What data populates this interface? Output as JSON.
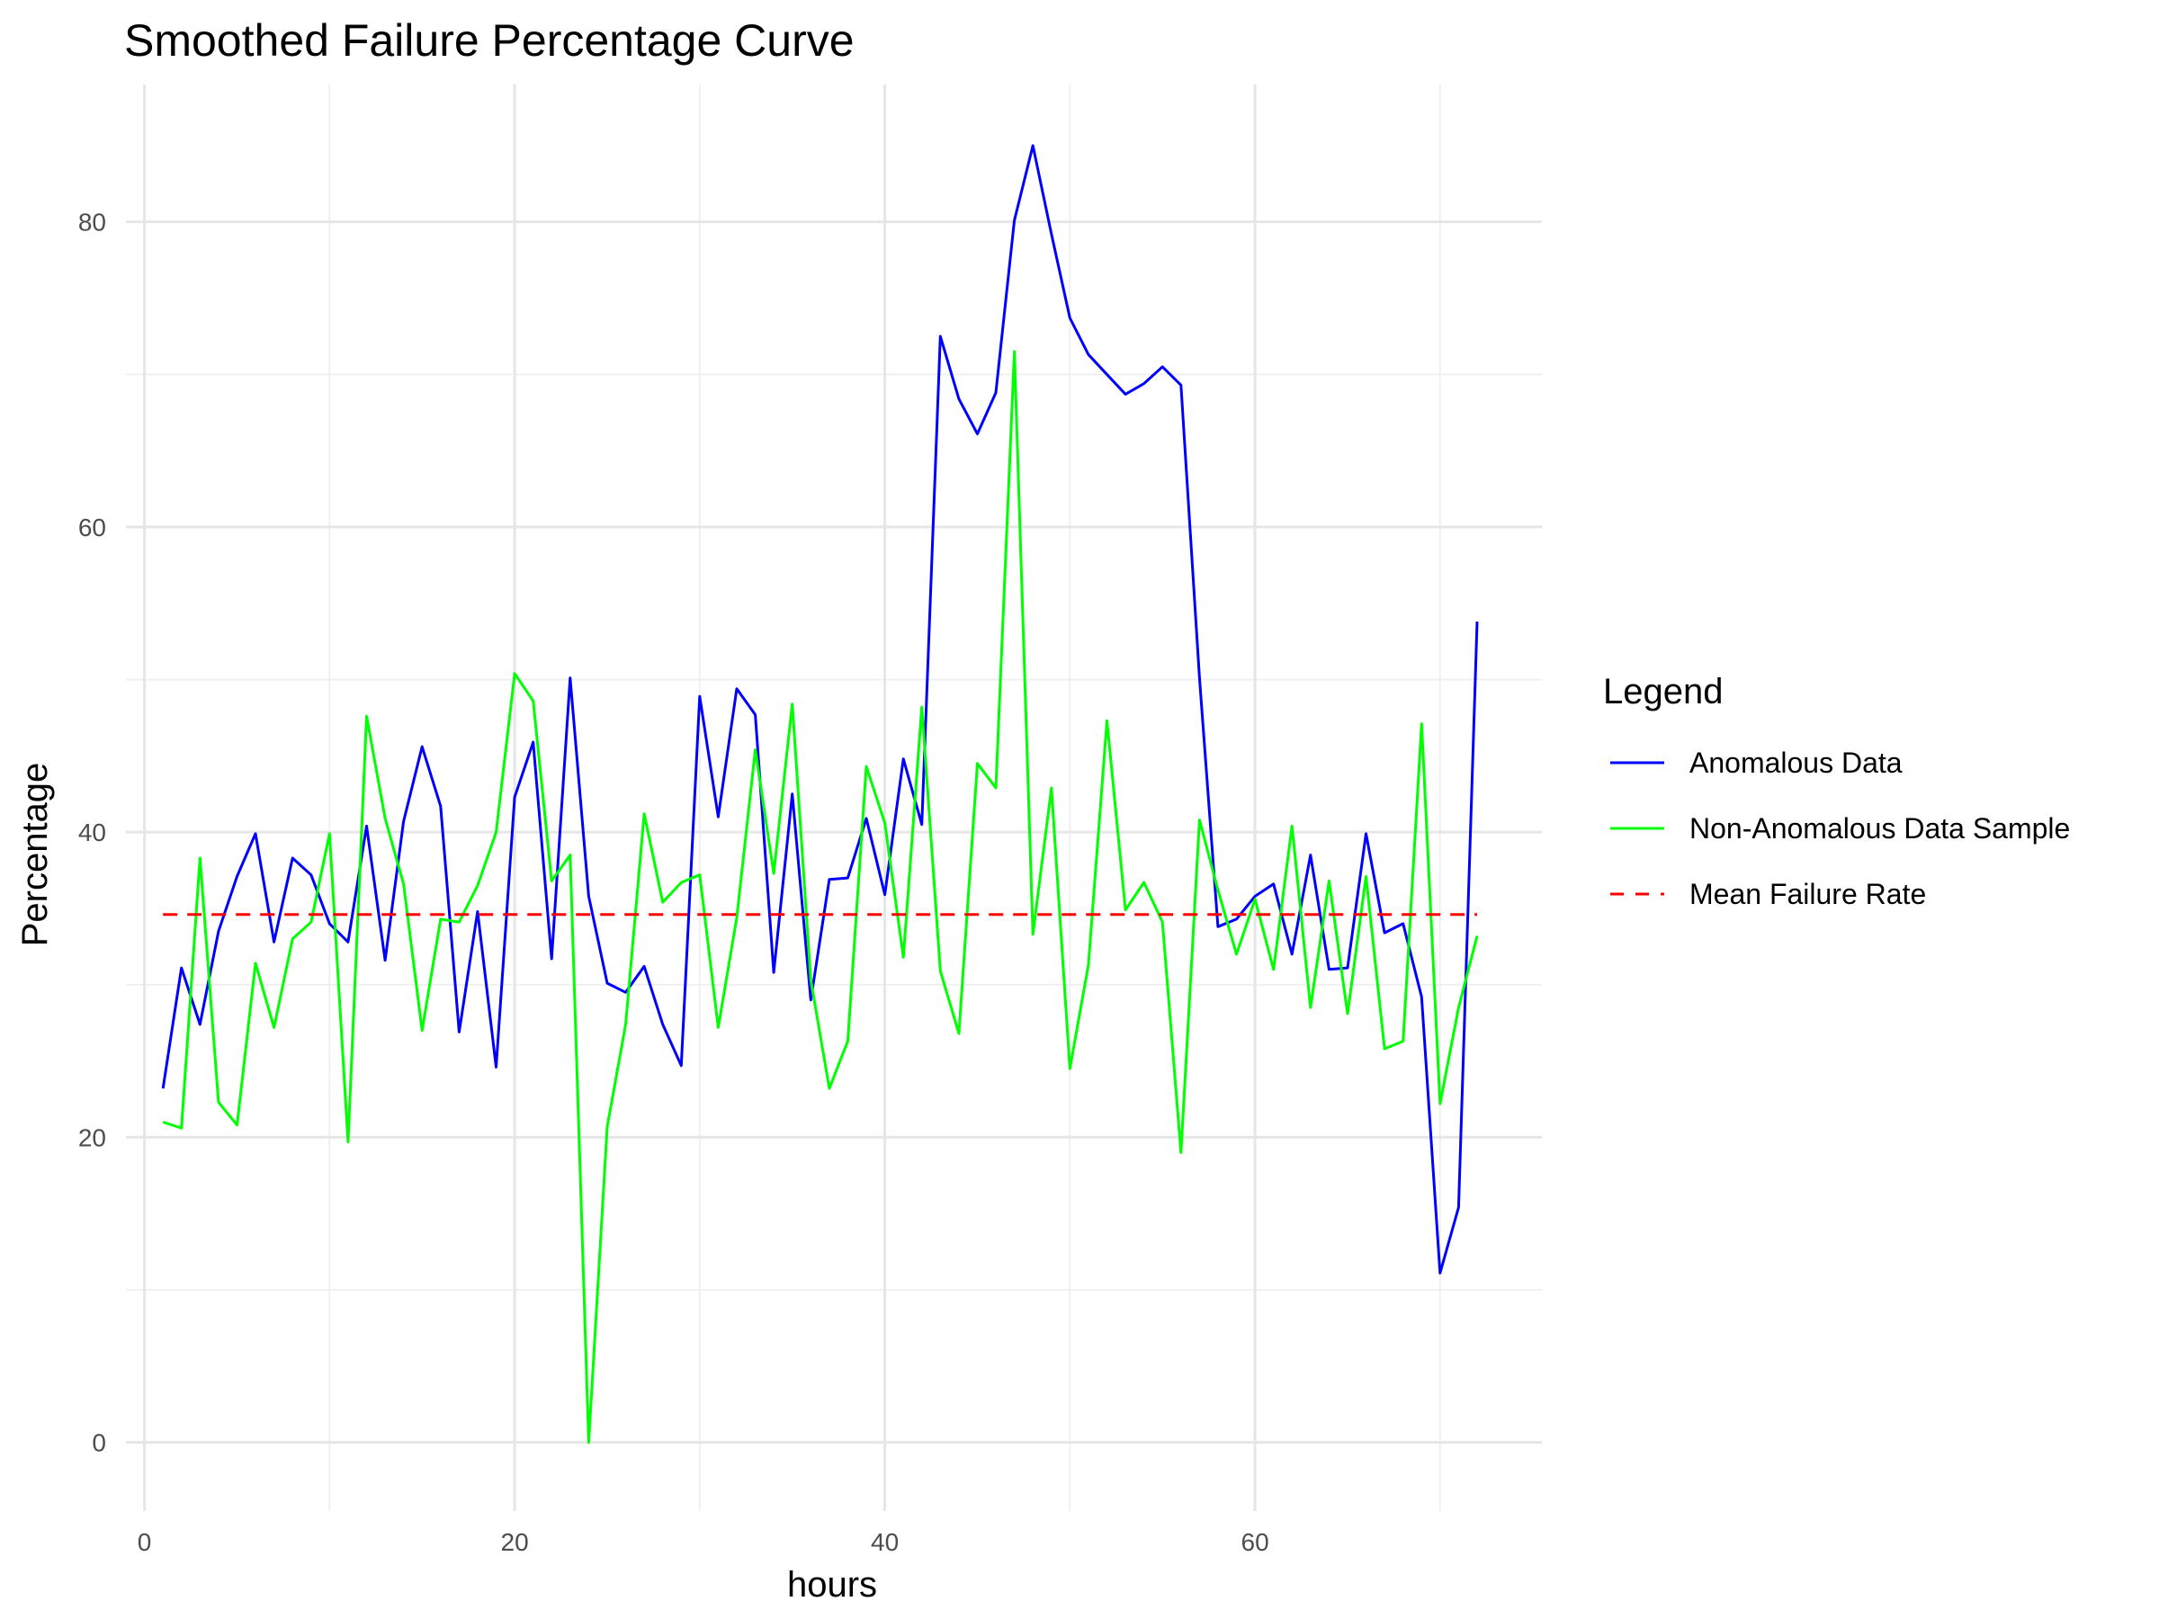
{
  "chart_data": {
    "type": "line",
    "title": "Smoothed Failure Percentage Curve",
    "xlabel": "hours",
    "ylabel": "Percentage",
    "xlim": [
      -1,
      75.5
    ],
    "ylim": [
      -4.5,
      89
    ],
    "x_ticks": [
      0,
      20,
      40,
      60
    ],
    "x_tick_labels": [
      "0",
      "20",
      "40",
      "60"
    ],
    "y_ticks": [
      0,
      20,
      40,
      60,
      80
    ],
    "y_tick_labels": [
      "0",
      "20",
      "40",
      "60",
      "80"
    ],
    "grid": true,
    "legend": {
      "title": "Legend",
      "position": "right"
    },
    "series": [
      {
        "name": "Anomalous Data",
        "color": "#0000ff",
        "style": "solid",
        "x": [
          1,
          2,
          3,
          4,
          5,
          6,
          7,
          8,
          9,
          10,
          11,
          12,
          13,
          14,
          15,
          16,
          17,
          18,
          19,
          20,
          21,
          22,
          23,
          24,
          25,
          26,
          27,
          28,
          29,
          30,
          31,
          32,
          33,
          34,
          35,
          36,
          37,
          38,
          39,
          40,
          41,
          42,
          43,
          44,
          45,
          46,
          47,
          48,
          49,
          50,
          51,
          52,
          53,
          54,
          55,
          56,
          57,
          58,
          59,
          60,
          61,
          62,
          63,
          64,
          65,
          66,
          67,
          68,
          69,
          70,
          71,
          72
        ],
        "values": [
          23.2,
          31.1,
          27.4,
          33.5,
          37.1,
          39.9,
          32.8,
          38.3,
          37.2,
          34.0,
          32.8,
          40.4,
          31.6,
          40.7,
          45.6,
          41.7,
          26.9,
          34.8,
          24.6,
          42.3,
          45.9,
          31.7,
          50.1,
          35.8,
          30.1,
          29.5,
          31.2,
          27.4,
          24.7,
          48.9,
          41.0,
          49.4,
          47.7,
          30.8,
          42.5,
          29.0,
          36.9,
          37.0,
          40.9,
          35.9,
          44.8,
          40.5,
          72.5,
          68.4,
          66.1,
          68.8,
          80.1,
          85.0,
          79.2,
          73.7,
          71.3,
          70.0,
          68.7,
          69.4,
          70.5,
          69.3,
          50.1,
          33.8,
          34.3,
          35.8,
          36.6,
          32.0,
          38.5,
          31.0,
          31.1,
          39.9,
          33.4,
          34.0,
          29.2,
          11.1,
          15.4,
          53.8
        ]
      },
      {
        "name": "Non-Anomalous Data Sample",
        "color": "#00ff00",
        "style": "solid",
        "x": [
          1,
          2,
          3,
          4,
          5,
          6,
          7,
          8,
          9,
          10,
          11,
          12,
          13,
          14,
          15,
          16,
          17,
          18,
          19,
          20,
          21,
          22,
          23,
          24,
          25,
          26,
          27,
          28,
          29,
          30,
          31,
          32,
          33,
          34,
          35,
          36,
          37,
          38,
          39,
          40,
          41,
          42,
          43,
          44,
          45,
          46,
          47,
          48,
          49,
          50,
          51,
          52,
          53,
          54,
          55,
          56,
          57,
          58,
          59,
          60,
          61,
          62,
          63,
          64,
          65,
          66,
          67,
          68,
          69,
          70,
          71,
          72
        ],
        "values": [
          21.0,
          20.6,
          38.3,
          22.3,
          20.8,
          31.4,
          27.2,
          33.0,
          34.1,
          39.9,
          19.7,
          47.6,
          40.9,
          36.6,
          27.0,
          34.3,
          34.1,
          36.5,
          40.0,
          50.4,
          48.6,
          36.8,
          38.5,
          0.0,
          20.7,
          27.4,
          41.2,
          35.4,
          36.7,
          37.2,
          27.2,
          34.4,
          45.4,
          37.3,
          48.4,
          30.3,
          23.2,
          26.3,
          44.3,
          40.6,
          31.8,
          48.2,
          30.9,
          26.8,
          44.5,
          42.9,
          71.5,
          33.3,
          42.9,
          24.5,
          31.3,
          47.3,
          34.9,
          36.7,
          34.1,
          19.0,
          40.8,
          36.2,
          32.0,
          35.6,
          31.0,
          40.4,
          28.5,
          36.8,
          28.1,
          37.1,
          25.8,
          26.3,
          47.1,
          22.2,
          28.5,
          33.2
        ]
      },
      {
        "name": "Mean Failure Rate",
        "color": "#ff0000",
        "style": "dashed",
        "x": [
          1,
          72
        ],
        "values": [
          34.6,
          34.6
        ]
      }
    ]
  }
}
